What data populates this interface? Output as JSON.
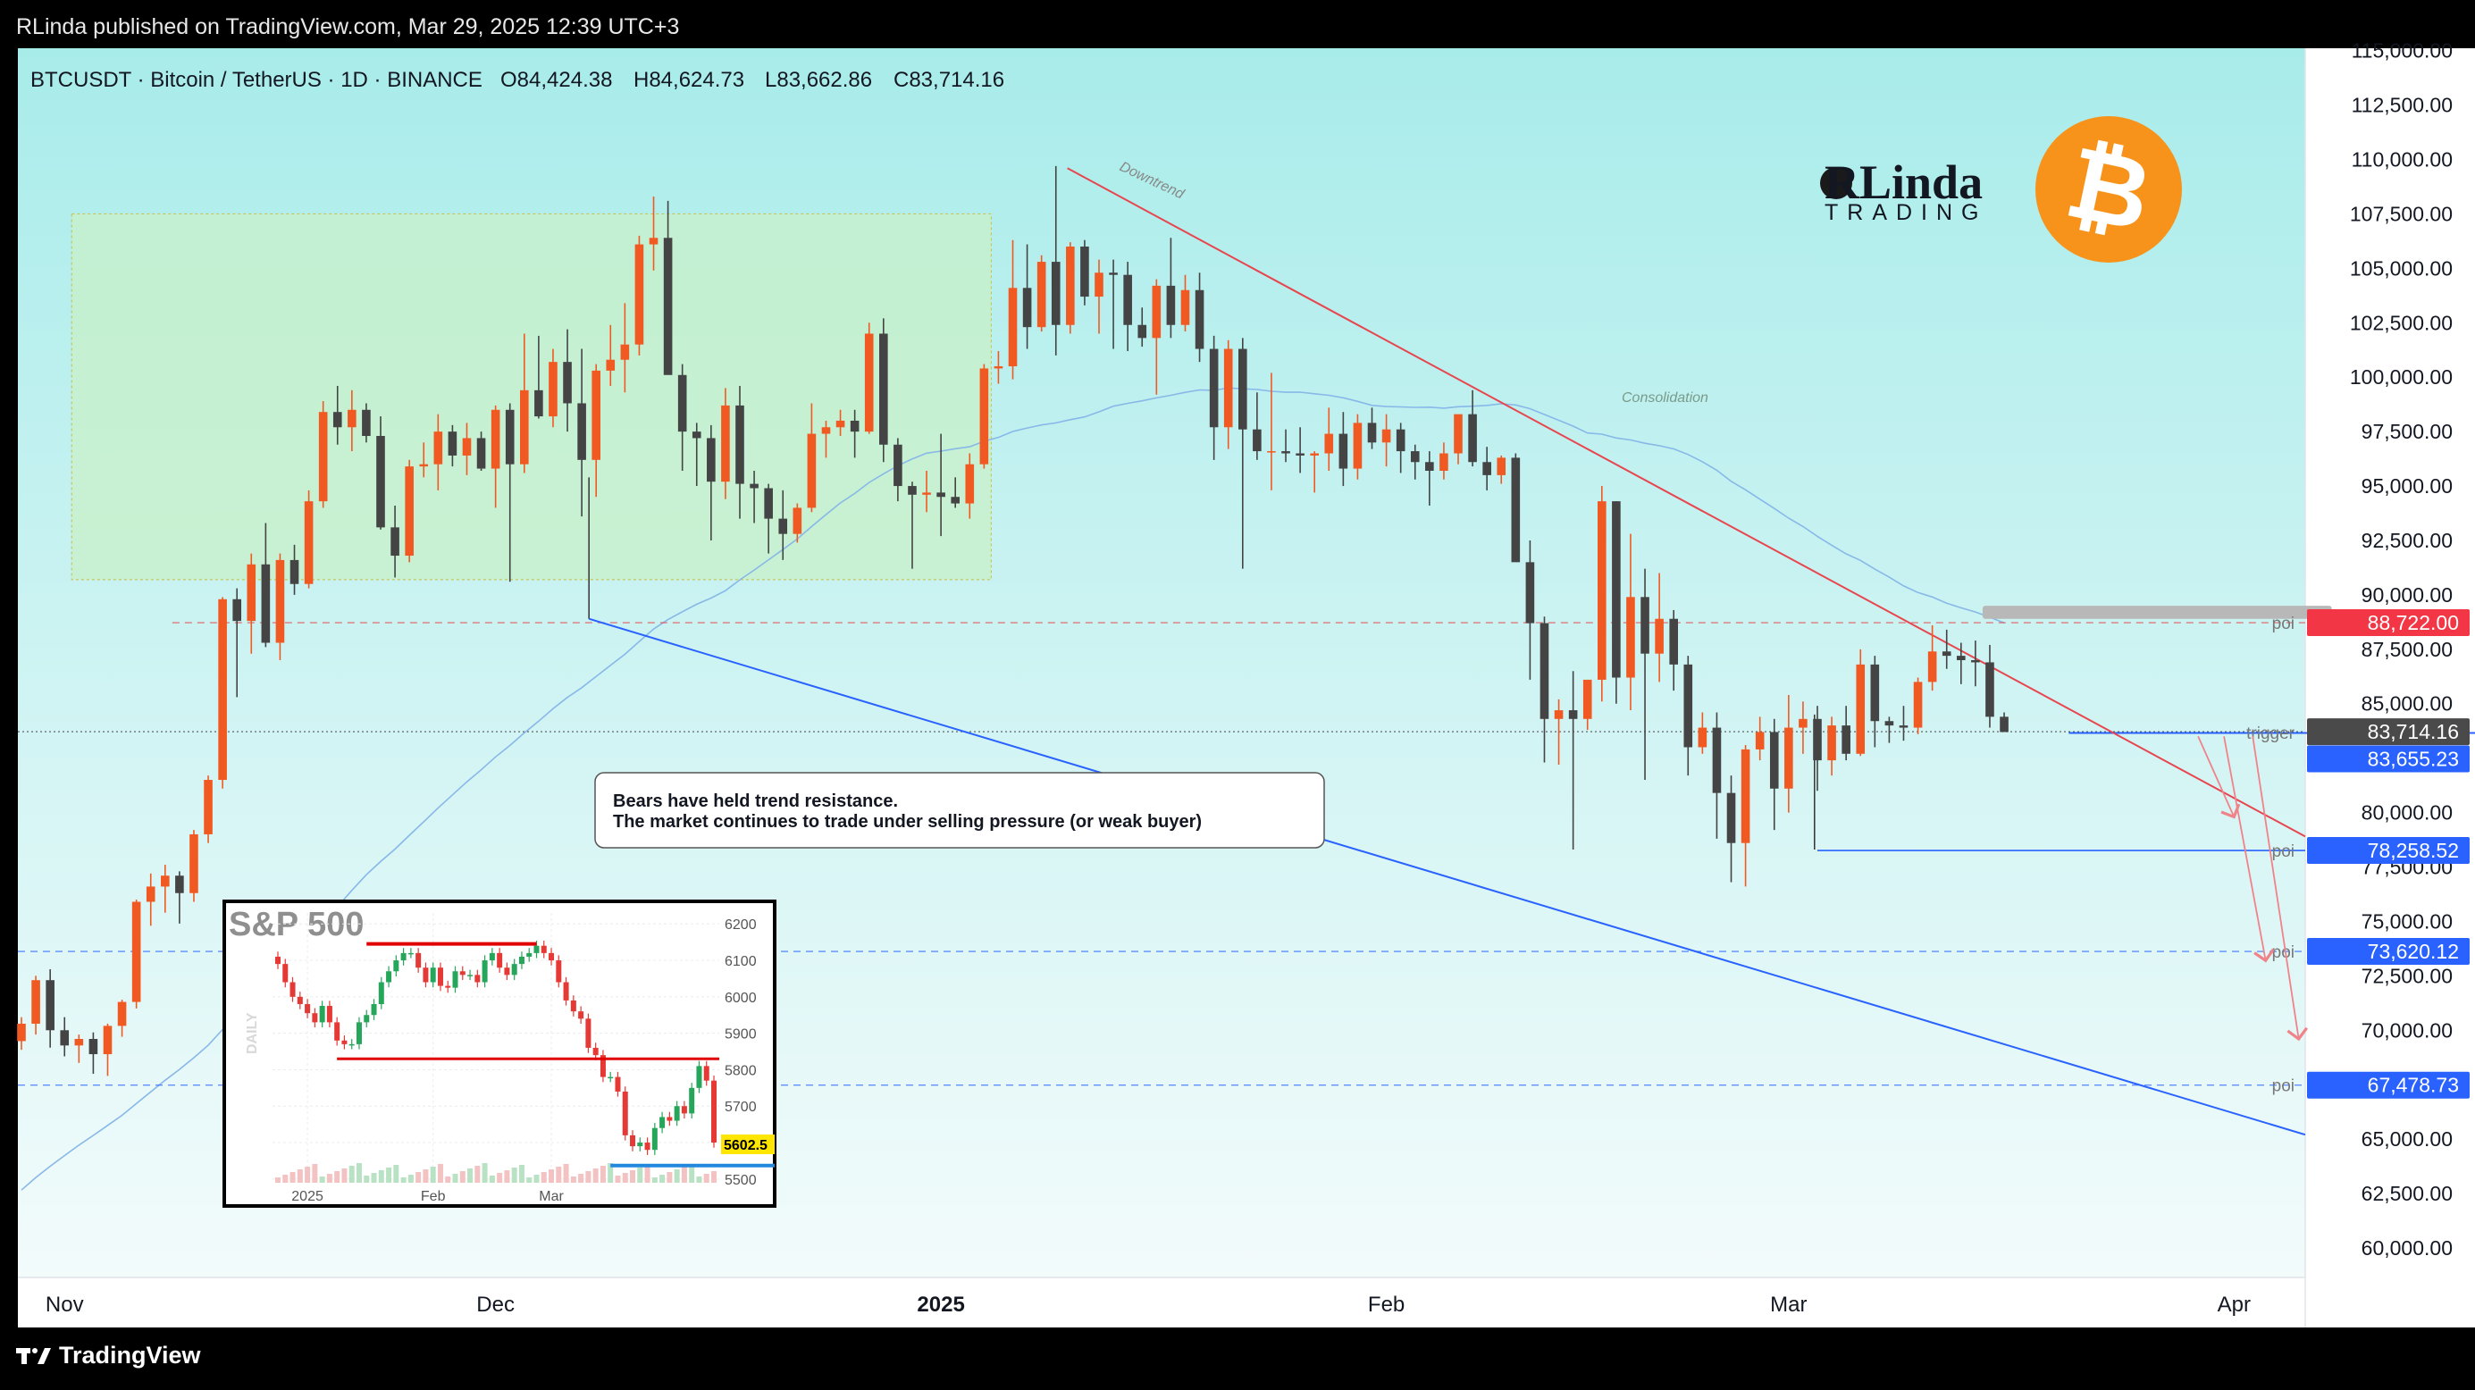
{
  "header": {
    "published": "RLinda published on TradingView.com, Mar 29, 2025 12:39 UTC+3",
    "symbol_line": "BTCUSDT · Bitcoin / TetherUS · 1D · BINANCE",
    "ohlc": {
      "o": "O84,424.38",
      "h": "H84,624.73",
      "l": "L83,662.86",
      "c": "C83,714.16"
    }
  },
  "footer": {
    "brand": "TradingView"
  },
  "logo": {
    "brand": "RLinda",
    "sub": "TRADING"
  },
  "annotations": {
    "downtrend": "Downtrend",
    "consolidation": "Consolidation",
    "note_line1": "Bears have held trend resistance.",
    "note_line2": "The market continues to trade under selling pressure (or weak buyer)",
    "poi": "poi",
    "trigger": "trigger"
  },
  "colors": {
    "bg_top": "#a8ecea",
    "bg_bottom": "#f3fbfb",
    "up": "#f05a22",
    "down": "#444444",
    "resistance": "#e8464f",
    "support": "#2962ff",
    "ma": "#88b8e8",
    "zone_fill": "#c8f0c8",
    "price_label_red": "#f23645",
    "price_label_blue": "#2962ff",
    "price_label_dark": "#4a4a4a",
    "bitcoin": "#f7931a"
  },
  "chart_data": {
    "type": "candlestick",
    "symbol": "BTCUSDT",
    "timeframe": "1D",
    "ylim": [
      58000,
      116000
    ],
    "yticks": [
      "115,000.00",
      "112,500.00",
      "110,000.00",
      "107,500.00",
      "105,000.00",
      "102,500.00",
      "100,000.00",
      "97,500.00",
      "95,000.00",
      "92,500.00",
      "90,000.00",
      "87,500.00",
      "85,000.00",
      "82,500.00",
      "80,000.00",
      "77,500.00",
      "75,000.00",
      "72,500.00",
      "70,000.00",
      "67,500.00",
      "65,000.00",
      "62,500.00",
      "60,000.00"
    ],
    "ytick_values": [
      115000,
      112500,
      110000,
      107500,
      105000,
      102500,
      100000,
      97500,
      95000,
      92500,
      90000,
      87500,
      85000,
      82500,
      80000,
      77500,
      75000,
      72500,
      70000,
      67500,
      65000,
      62500,
      60000
    ],
    "xticks": [
      "Nov",
      "Dec",
      "2025",
      "Feb",
      "Mar",
      "Apr"
    ],
    "xtick_days": [
      3,
      33,
      64,
      95,
      123,
      154
    ],
    "price_levels": [
      {
        "label": "88,722.00",
        "value": 88722,
        "kind": "poi",
        "color": "red"
      },
      {
        "label": "83,714.16",
        "value": 83714.16,
        "kind": "last",
        "color": "dark"
      },
      {
        "label": "83,655.23",
        "value": 83655.23,
        "kind": "trigger",
        "color": "blue"
      },
      {
        "label": "78,258.52",
        "value": 78258.52,
        "kind": "poi",
        "color": "blue"
      },
      {
        "label": "73,620.12",
        "value": 73620.12,
        "kind": "poi",
        "color": "blue"
      },
      {
        "label": "67,478.73",
        "value": 67478.73,
        "kind": "poi",
        "color": "blue"
      }
    ],
    "candles": [
      [
        69500,
        70600,
        69100,
        70300
      ],
      [
        70300,
        72500,
        69800,
        72300
      ],
      [
        72300,
        72800,
        69200,
        70000
      ],
      [
        70000,
        70600,
        68800,
        69300
      ],
      [
        69300,
        69800,
        68500,
        69600
      ],
      [
        69600,
        69900,
        68000,
        68900
      ],
      [
        68900,
        70300,
        67900,
        70200
      ],
      [
        70200,
        71400,
        69700,
        71300
      ],
      [
        71300,
        76000,
        71000,
        75900
      ],
      [
        75900,
        77200,
        74800,
        76600
      ],
      [
        76600,
        77600,
        75400,
        77100
      ],
      [
        77100,
        77300,
        74900,
        76300
      ],
      [
        76300,
        79200,
        75900,
        79000
      ],
      [
        79000,
        81700,
        78600,
        81500
      ],
      [
        81500,
        89900,
        81100,
        89800
      ],
      [
        89800,
        90300,
        85300,
        88800
      ],
      [
        88800,
        91900,
        87300,
        91400
      ],
      [
        91400,
        93300,
        87600,
        87800
      ],
      [
        87800,
        91900,
        87000,
        91600
      ],
      [
        91600,
        92300,
        90000,
        90500
      ],
      [
        90500,
        94800,
        90300,
        94300
      ],
      [
        94300,
        98900,
        94000,
        98400
      ],
      [
        98400,
        99600,
        96900,
        97700
      ],
      [
        97700,
        99400,
        96600,
        98500
      ],
      [
        98500,
        98800,
        97000,
        97300
      ],
      [
        97300,
        98200,
        93000,
        93100
      ],
      [
        93100,
        94100,
        90800,
        91800
      ],
      [
        91800,
        96200,
        91500,
        95900
      ],
      [
        95900,
        97000,
        95400,
        96000
      ],
      [
        96000,
        98300,
        94800,
        97500
      ],
      [
        97500,
        97800,
        95900,
        96400
      ],
      [
        96400,
        97900,
        95500,
        97200
      ],
      [
        97200,
        97500,
        95700,
        95800
      ],
      [
        95800,
        98700,
        94000,
        98500
      ],
      [
        98500,
        98800,
        90600,
        96000
      ],
      [
        96000,
        102000,
        95600,
        99400
      ],
      [
        99400,
        101900,
        98100,
        98200
      ],
      [
        98200,
        101300,
        97700,
        100700
      ],
      [
        100700,
        102200,
        97500,
        98800
      ],
      [
        98800,
        101300,
        93600,
        96200
      ],
      [
        96200,
        100600,
        94500,
        100300
      ],
      [
        100300,
        102400,
        99600,
        100800
      ],
      [
        100800,
        103400,
        99300,
        101500
      ],
      [
        101500,
        106500,
        101000,
        106100
      ],
      [
        106100,
        108300,
        104900,
        106400
      ],
      [
        106400,
        108100,
        100200,
        100100
      ],
      [
        100100,
        100600,
        95700,
        97500
      ],
      [
        97500,
        97900,
        95000,
        97200
      ],
      [
        97200,
        97800,
        92500,
        95200
      ],
      [
        95200,
        99500,
        94400,
        98700
      ],
      [
        98700,
        99600,
        93500,
        95100
      ],
      [
        95100,
        95700,
        93300,
        94900
      ],
      [
        94900,
        95100,
        91900,
        93500
      ],
      [
        93500,
        94800,
        91600,
        92800
      ],
      [
        92800,
        94200,
        92400,
        94000
      ],
      [
        94000,
        98800,
        93800,
        97400
      ],
      [
        97400,
        98000,
        96300,
        97700
      ],
      [
        97700,
        98500,
        97300,
        98000
      ],
      [
        98000,
        98500,
        96300,
        97500
      ],
      [
        97500,
        102500,
        97400,
        102000
      ],
      [
        102000,
        102700,
        96100,
        96900
      ],
      [
        96900,
        97200,
        94300,
        95000
      ],
      [
        95000,
        95200,
        91200,
        94600
      ],
      [
        94600,
        95700,
        93800,
        94700
      ],
      [
        94700,
        97400,
        92700,
        94500
      ],
      [
        94500,
        95400,
        94000,
        94200
      ],
      [
        94200,
        96500,
        93500,
        96000
      ],
      [
        96000,
        100600,
        95800,
        100400
      ],
      [
        100400,
        101200,
        99700,
        100500
      ],
      [
        100500,
        106300,
        99900,
        104100
      ],
      [
        104100,
        106100,
        101300,
        102300
      ],
      [
        102300,
        105600,
        102100,
        105300
      ],
      [
        105300,
        109700,
        101000,
        102400
      ],
      [
        102400,
        106200,
        102000,
        106000
      ],
      [
        106000,
        106300,
        103300,
        103700
      ],
      [
        103700,
        105400,
        102000,
        104800
      ],
      [
        104800,
        105400,
        101300,
        104700
      ],
      [
        104700,
        105300,
        101200,
        102400
      ],
      [
        102400,
        103200,
        101400,
        101800
      ],
      [
        101800,
        104500,
        99200,
        104200
      ],
      [
        104200,
        106400,
        101800,
        102400
      ],
      [
        102400,
        104700,
        102100,
        104000
      ],
      [
        104000,
        104800,
        100700,
        101300
      ],
      [
        101300,
        101900,
        96200,
        97700
      ],
      [
        97700,
        101700,
        96700,
        101300
      ],
      [
        101300,
        101800,
        91200,
        97600
      ],
      [
        97600,
        99300,
        96200,
        96600
      ],
      [
        96600,
        100200,
        94800,
        96600
      ],
      [
        96600,
        97600,
        96100,
        96500
      ],
      [
        96500,
        97700,
        95600,
        96400
      ],
      [
        96400,
        96600,
        94700,
        96500
      ],
      [
        96500,
        98600,
        95700,
        97400
      ],
      [
        97400,
        98400,
        95000,
        95800
      ],
      [
        95800,
        98300,
        95300,
        97900
      ],
      [
        97900,
        98600,
        96700,
        97000
      ],
      [
        97000,
        98300,
        95900,
        97600
      ],
      [
        97600,
        97900,
        95600,
        96600
      ],
      [
        96600,
        96900,
        95300,
        96100
      ],
      [
        96100,
        96600,
        94100,
        95700
      ],
      [
        95700,
        97000,
        95300,
        96500
      ],
      [
        96500,
        98000,
        96000,
        98300
      ],
      [
        98300,
        99400,
        95900,
        96100
      ],
      [
        96100,
        96800,
        94800,
        95500
      ],
      [
        95500,
        96400,
        95100,
        96300
      ],
      [
        96300,
        96500,
        91800,
        91500
      ],
      [
        91500,
        92500,
        86100,
        88700
      ],
      [
        88700,
        89000,
        82300,
        84300
      ],
      [
        84300,
        85200,
        82200,
        84700
      ],
      [
        84700,
        86500,
        78300,
        84300
      ],
      [
        84300,
        86100,
        83800,
        86100
      ],
      [
        86100,
        95000,
        85100,
        94300
      ],
      [
        94300,
        94300,
        85000,
        86200
      ],
      [
        86200,
        92800,
        84700,
        89900
      ],
      [
        89900,
        91200,
        81500,
        87300
      ],
      [
        87300,
        91000,
        86000,
        88900
      ],
      [
        88900,
        89300,
        85600,
        86800
      ],
      [
        86800,
        87200,
        81700,
        83000
      ],
      [
        83000,
        84600,
        82700,
        83900
      ],
      [
        83900,
        84600,
        78800,
        80900
      ],
      [
        80900,
        81700,
        76800,
        78600
      ],
      [
        78600,
        83100,
        76600,
        82900
      ],
      [
        82900,
        84400,
        82400,
        83700
      ],
      [
        83700,
        84300,
        79200,
        81100
      ],
      [
        81100,
        85400,
        80000,
        83900
      ],
      [
        83900,
        85100,
        82700,
        84300
      ],
      [
        84300,
        84900,
        81000,
        82400
      ],
      [
        82400,
        84400,
        81700,
        84000
      ],
      [
        84000,
        84900,
        82400,
        82700
      ],
      [
        82700,
        87500,
        82600,
        86800
      ],
      [
        86800,
        87200,
        83000,
        84200
      ],
      [
        84200,
        84400,
        83200,
        84000
      ],
      [
        84000,
        84900,
        83300,
        83900
      ],
      [
        83900,
        86200,
        83600,
        86000
      ],
      [
        86000,
        88600,
        85600,
        87400
      ],
      [
        87400,
        88400,
        86600,
        87200
      ],
      [
        87200,
        87800,
        85900,
        87000
      ],
      [
        87000,
        87900,
        85800,
        86900
      ],
      [
        86900,
        87700,
        83900,
        84400
      ],
      [
        84400,
        84600,
        83700,
        83700
      ]
    ]
  },
  "inset": {
    "title": "S&P 500",
    "side_label": "DAILY",
    "price_label": "5602.5",
    "yticks": [
      "6200",
      "6100",
      "6000",
      "5900",
      "5800",
      "5700",
      "5600",
      "5500"
    ],
    "ytick_values": [
      6200,
      6100,
      6000,
      5900,
      5800,
      5700,
      5600,
      5500
    ],
    "ylim": [
      5480,
      6230
    ],
    "xticks": [
      "2025",
      "Feb",
      "Mar"
    ],
    "xtick_index": [
      4,
      21,
      37
    ],
    "level_top": 6145,
    "level_mid": 5830,
    "level_low": 5537,
    "closes": [
      6090,
      6040,
      6000,
      5980,
      5955,
      5930,
      5975,
      5930,
      5880,
      5870,
      5870,
      5930,
      5950,
      5980,
      6040,
      6070,
      6100,
      6120,
      6120,
      6080,
      6040,
      6080,
      6030,
      6025,
      6070,
      6060,
      6060,
      6040,
      6100,
      6120,
      6080,
      6060,
      6090,
      6110,
      6120,
      6140,
      6120,
      6100,
      6040,
      5990,
      5960,
      5940,
      5860,
      5840,
      5780,
      5780,
      5740,
      5620,
      5590,
      5600,
      5580,
      5640,
      5670,
      5660,
      5700,
      5680,
      5750,
      5810,
      5770,
      5600
    ]
  }
}
